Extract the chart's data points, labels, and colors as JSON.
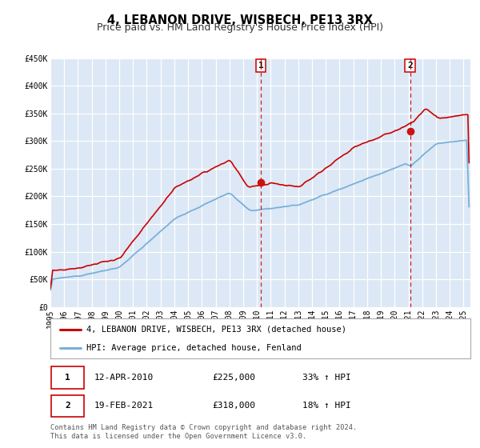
{
  "title": "4, LEBANON DRIVE, WISBECH, PE13 3RX",
  "subtitle": "Price paid vs. HM Land Registry's House Price Index (HPI)",
  "ylim": [
    0,
    450000
  ],
  "yticks": [
    0,
    50000,
    100000,
    150000,
    200000,
    250000,
    300000,
    350000,
    400000,
    450000
  ],
  "ytick_labels": [
    "£0",
    "£50K",
    "£100K",
    "£150K",
    "£200K",
    "£250K",
    "£300K",
    "£350K",
    "£400K",
    "£450K"
  ],
  "xlim_start": 1995.0,
  "xlim_end": 2025.5,
  "background_color": "#dce8f5",
  "grid_color": "#ffffff",
  "hpi_line_color": "#7ab0d8",
  "price_line_color": "#cc0000",
  "marker1_x": 2010.29,
  "marker1_y": 225000,
  "marker2_x": 2021.12,
  "marker2_y": 318000,
  "vline1_x": 2010.29,
  "vline2_x": 2021.12,
  "label1_date": "12-APR-2010",
  "label1_price": "£225,000",
  "label1_hpi": "33% ↑ HPI",
  "label2_date": "19-FEB-2021",
  "label2_price": "£318,000",
  "label2_hpi": "18% ↑ HPI",
  "legend_label1": "4, LEBANON DRIVE, WISBECH, PE13 3RX (detached house)",
  "legend_label2": "HPI: Average price, detached house, Fenland",
  "footer_line1": "Contains HM Land Registry data © Crown copyright and database right 2024.",
  "footer_line2": "This data is licensed under the Open Government Licence v3.0.",
  "title_fontsize": 10.5,
  "subtitle_fontsize": 9,
  "tick_fontsize": 7,
  "legend_fontsize": 7.5,
  "ann_fontsize": 8
}
